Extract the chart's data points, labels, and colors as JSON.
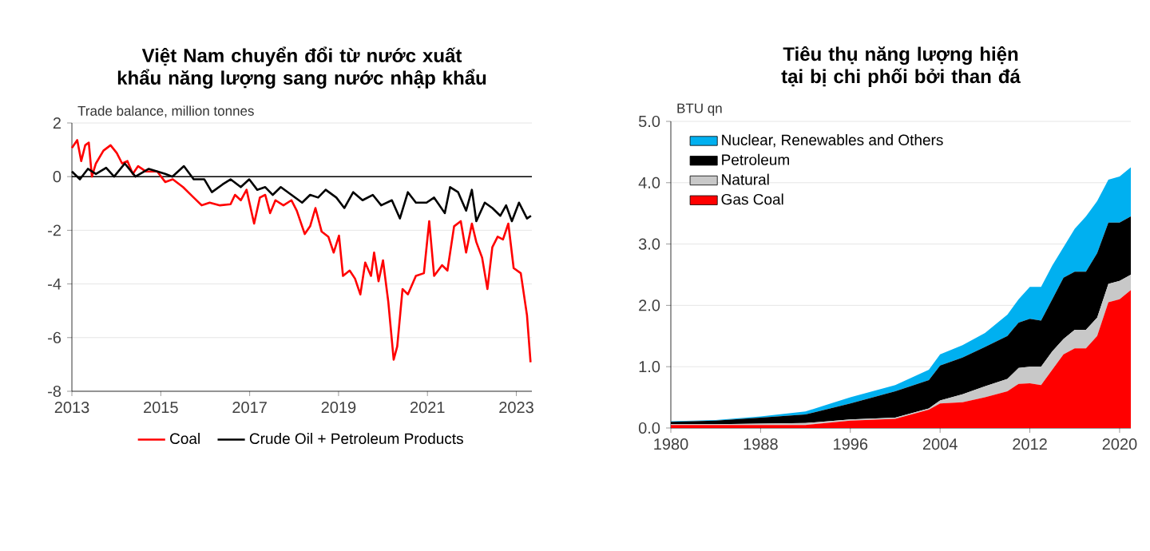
{
  "chart_data": [
    {
      "type": "line",
      "title": "Việt Nam chuyển đổi từ nước xuất khẩu năng lượng sang nước nhập khẩu",
      "ylabel": "Trade balance, million tonnes",
      "xlim": [
        2013,
        2023.35
      ],
      "xticks": [
        2013,
        2015,
        2017,
        2019,
        2021,
        2023
      ],
      "ylim": [
        -8,
        2
      ],
      "yticks": [
        2,
        0,
        -2,
        -4,
        -6,
        -8
      ],
      "grid": "y",
      "legend": "bottom",
      "marker": "none",
      "line_style": "solid",
      "ref_lines": [
        {
          "axis": "y",
          "value": 0,
          "color": "#000000"
        }
      ],
      "series": [
        {
          "name": "Coal",
          "color": "#ff0000",
          "x": [
            2013,
            2013.12,
            2013.21,
            2013.3,
            2013.38,
            2013.45,
            2013.54,
            2013.71,
            2013.87,
            2014.01,
            2014.13,
            2014.25,
            2014.37,
            2014.49,
            2014.67,
            2014.92,
            2015.1,
            2015.27,
            2015.5,
            2015.74,
            2015.92,
            2016.1,
            2016.33,
            2016.57,
            2016.67,
            2016.8,
            2016.93,
            2017.1,
            2017.23,
            2017.35,
            2017.46,
            2017.58,
            2017.76,
            2017.94,
            2018.06,
            2018.24,
            2018.36,
            2018.48,
            2018.62,
            2018.77,
            2018.89,
            2019.01,
            2019.1,
            2019.25,
            2019.37,
            2019.49,
            2019.6,
            2019.73,
            2019.8,
            2019.9,
            2020,
            2020.12,
            2020.24,
            2020.32,
            2020.44,
            2020.56,
            2020.74,
            2020.92,
            2021.04,
            2021.15,
            2021.33,
            2021.45,
            2021.6,
            2021.75,
            2021.87,
            2022,
            2022.1,
            2022.23,
            2022.35,
            2022.46,
            2022.58,
            2022.7,
            2022.82,
            2022.94,
            2023.1,
            2023.24,
            2023.32
          ],
          "values": [
            1.07,
            1.36,
            0.58,
            1.17,
            1.27,
            0,
            0.49,
            0.97,
            1.17,
            0.88,
            0.49,
            0.58,
            0.1,
            0.39,
            0.19,
            0.19,
            -0.2,
            -0.1,
            -0.39,
            -0.78,
            -1.07,
            -0.97,
            -1.07,
            -1.03,
            -0.68,
            -0.88,
            -0.49,
            -1.75,
            -0.78,
            -0.68,
            -1.36,
            -0.88,
            -1.07,
            -0.88,
            -1.27,
            -2.14,
            -1.85,
            -1.17,
            -2.05,
            -2.24,
            -2.83,
            -2.2,
            -3.7,
            -3.5,
            -3.8,
            -4.39,
            -3.2,
            -3.7,
            -2.83,
            -3.9,
            -3.12,
            -4.68,
            -6.82,
            -6.33,
            -4.19,
            -4.39,
            -3.7,
            -3.6,
            -1.66,
            -3.7,
            -3.3,
            -3.5,
            -1.85,
            -1.66,
            -2.83,
            -1.75,
            -2.44,
            -3.02,
            -4.19,
            -2.63,
            -2.24,
            -2.34,
            -1.75,
            -3.41,
            -3.6,
            -5.17,
            -6.92
          ]
        },
        {
          "name": "Crude Oil + Petroleum Products",
          "color": "#000000",
          "x": [
            2013,
            2013.18,
            2013.36,
            2013.54,
            2013.77,
            2013.95,
            2014.19,
            2014.43,
            2014.73,
            2015.1,
            2015.26,
            2015.52,
            2015.74,
            2015.98,
            2016.15,
            2016.39,
            2016.57,
            2016.8,
            2016.99,
            2017.17,
            2017.35,
            2017.52,
            2017.7,
            2017.94,
            2018.18,
            2018.36,
            2018.54,
            2018.71,
            2018.95,
            2019.13,
            2019.33,
            2019.54,
            2019.77,
            2019.96,
            2020.2,
            2020.38,
            2020.56,
            2020.74,
            2020.98,
            2021.15,
            2021.39,
            2021.51,
            2021.69,
            2021.87,
            2022,
            2022.1,
            2022.29,
            2022.46,
            2022.64,
            2022.77,
            2022.9,
            2023.06,
            2023.24,
            2023.33
          ],
          "values": [
            0.19,
            -0.1,
            0.29,
            0.1,
            0.33,
            0,
            0.49,
            0,
            0.29,
            0.1,
            0,
            0.39,
            -0.1,
            -0.1,
            -0.58,
            -0.29,
            -0.1,
            -0.39,
            -0.1,
            -0.49,
            -0.39,
            -0.68,
            -0.39,
            -0.68,
            -0.97,
            -0.68,
            -0.78,
            -0.49,
            -0.78,
            -1.17,
            -0.58,
            -0.88,
            -0.68,
            -1.07,
            -0.88,
            -1.56,
            -0.58,
            -0.97,
            -0.97,
            -0.78,
            -1.36,
            -0.39,
            -0.58,
            -1.27,
            -0.49,
            -1.66,
            -0.97,
            -1.17,
            -1.46,
            -1.07,
            -1.66,
            -0.97,
            -1.56,
            -1.46
          ]
        }
      ]
    },
    {
      "type": "area",
      "stacked": true,
      "title": "Tiêu thụ năng lượng hiện tại bị chi phối bởi than đá",
      "ylabel": "BTU qn",
      "xlim": [
        1980,
        2021
      ],
      "xticks": [
        1980,
        1988,
        1996,
        2004,
        2012,
        2020
      ],
      "ylim": [
        0,
        5
      ],
      "yticks": [
        {
          "value": 0,
          "label": "0.0"
        },
        {
          "value": 1,
          "label": "1.0"
        },
        {
          "value": 2,
          "label": "2.0"
        },
        {
          "value": 3,
          "label": "3.0"
        },
        {
          "value": 4,
          "label": "4.0"
        },
        {
          "value": 5,
          "label": "5.0"
        }
      ],
      "grid": "y",
      "legend": "top left",
      "x": [
        1980,
        1984,
        1988,
        1992,
        1996,
        2000,
        2003,
        2004,
        2006,
        2008,
        2010,
        2011,
        2012,
        2013,
        2014,
        2015,
        2016,
        2017,
        2018,
        2019,
        2020,
        2021
      ],
      "series": [
        {
          "name": "Gas Coal",
          "color": "#ff0000",
          "values": [
            0.05,
            0.05,
            0.05,
            0.05,
            0.12,
            0.15,
            0.3,
            0.4,
            0.42,
            0.5,
            0.6,
            0.72,
            0.73,
            0.7,
            0.95,
            1.2,
            1.3,
            1.3,
            1.5,
            2.05,
            2.1,
            2.25
          ]
        },
        {
          "name": "Natural",
          "color": "#c8c8c8",
          "values": [
            0.01,
            0.01,
            0.02,
            0.03,
            0.02,
            0.02,
            0.02,
            0.05,
            0.13,
            0.18,
            0.2,
            0.26,
            0.27,
            0.3,
            0.3,
            0.25,
            0.3,
            0.3,
            0.3,
            0.3,
            0.3,
            0.25
          ]
        },
        {
          "name": "Petroleum",
          "color": "#000000",
          "values": [
            0.04,
            0.06,
            0.1,
            0.14,
            0.26,
            0.43,
            0.46,
            0.57,
            0.6,
            0.64,
            0.7,
            0.74,
            0.78,
            0.75,
            0.85,
            1.0,
            0.95,
            0.95,
            1.05,
            1.0,
            0.95,
            0.95
          ]
        },
        {
          "name": "Nuclear, Renewables and Others",
          "color": "#00b0f0",
          "values": [
            0.01,
            0.01,
            0.02,
            0.05,
            0.1,
            0.1,
            0.17,
            0.18,
            0.2,
            0.23,
            0.35,
            0.38,
            0.52,
            0.55,
            0.55,
            0.5,
            0.7,
            0.9,
            0.85,
            0.7,
            0.75,
            0.8
          ]
        }
      ]
    }
  ]
}
